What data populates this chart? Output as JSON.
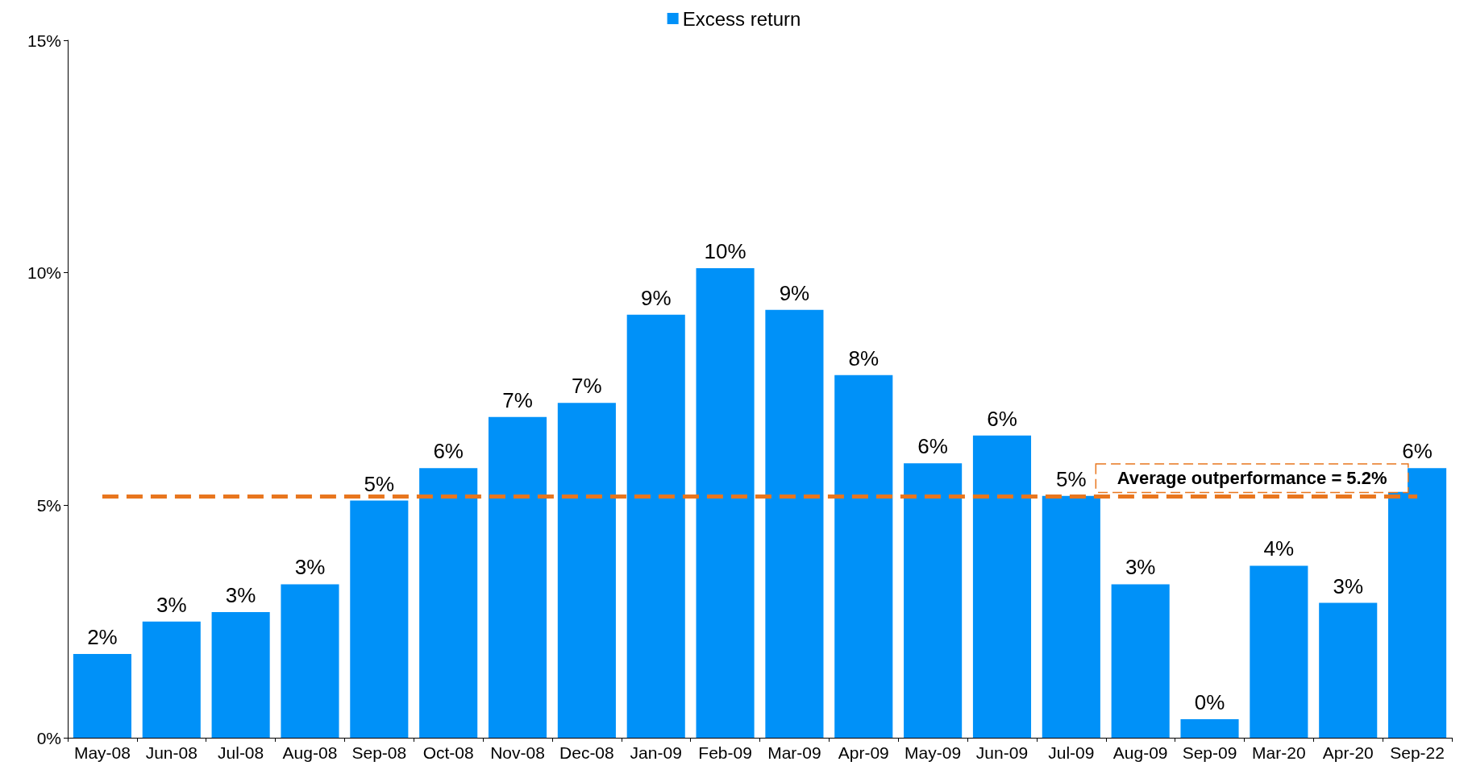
{
  "chart_data": {
    "type": "bar",
    "categories": [
      "May-08",
      "Jun-08",
      "Jul-08",
      "Aug-08",
      "Sep-08",
      "Oct-08",
      "Nov-08",
      "Dec-08",
      "Jan-09",
      "Feb-09",
      "Mar-09",
      "Apr-09",
      "May-09",
      "Jun-09",
      "Jul-09",
      "Aug-09",
      "Sep-09",
      "Mar-20",
      "Apr-20",
      "Sep-22"
    ],
    "series": [
      {
        "name": "Excess return",
        "color": "#0091f8",
        "values": [
          1.8,
          2.5,
          2.7,
          3.3,
          5.1,
          5.8,
          6.9,
          7.2,
          9.1,
          10.1,
          9.2,
          7.8,
          5.9,
          6.5,
          5.2,
          3.3,
          0.4,
          3.7,
          2.9,
          5.8
        ],
        "value_labels": [
          "2%",
          "3%",
          "3%",
          "3%",
          "5%",
          "6%",
          "7%",
          "7%",
          "9%",
          "10%",
          "9%",
          "8%",
          "6%",
          "6%",
          "5%",
          "3%",
          "0%",
          "4%",
          "3%",
          "6%"
        ]
      }
    ],
    "ylim": [
      0,
      15
    ],
    "yticks": [
      {
        "value": 0,
        "label": "0%"
      },
      {
        "value": 5,
        "label": "5%"
      },
      {
        "value": 10,
        "label": "10%"
      },
      {
        "value": 15,
        "label": "15%"
      }
    ],
    "ref_lines": [
      {
        "axis": "y",
        "value": 5.2,
        "label": "Average outperformance = 5.2%",
        "color": "#e8761e",
        "line_style": "dashed"
      }
    ],
    "legend": "top",
    "grid": false
  }
}
